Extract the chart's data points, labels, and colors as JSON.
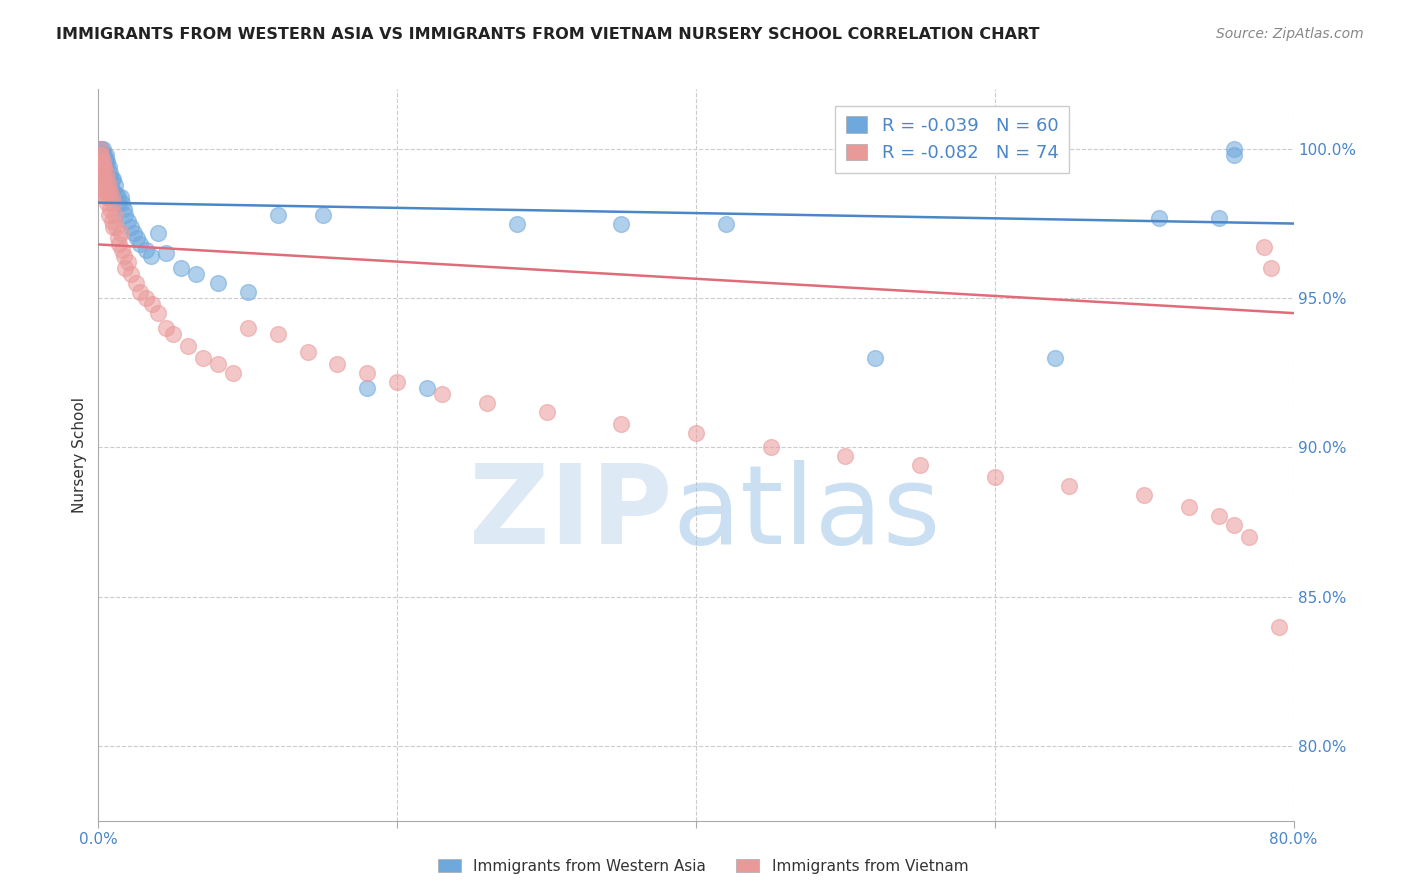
{
  "title": "IMMIGRANTS FROM WESTERN ASIA VS IMMIGRANTS FROM VIETNAM NURSERY SCHOOL CORRELATION CHART",
  "source": "Source: ZipAtlas.com",
  "ylabel": "Nursery School",
  "y_tick_labels": [
    "80.0%",
    "85.0%",
    "90.0%",
    "95.0%",
    "100.0%"
  ],
  "y_tick_values": [
    0.8,
    0.85,
    0.9,
    0.95,
    1.0
  ],
  "x_tick_labels": [
    "0.0%",
    "",
    "",
    "",
    "80.0%"
  ],
  "x_tick_values": [
    0.0,
    0.2,
    0.4,
    0.6,
    0.8
  ],
  "x_min": 0.0,
  "x_max": 0.8,
  "y_min": 0.775,
  "y_max": 1.02,
  "blue_color": "#6fa8dc",
  "pink_color": "#ea9999",
  "blue_line_color": "#4a86c8",
  "pink_line_color": "#e06c7a",
  "legend_R_blue": "R = -0.039",
  "legend_N_blue": "N = 60",
  "legend_R_pink": "R = -0.082",
  "legend_N_pink": "N = 74",
  "watermark_zip": "ZIP",
  "watermark_atlas": "atlas",
  "grid_color": "#cccccc",
  "blue_line_x0": 0.0,
  "blue_line_y0": 0.982,
  "blue_line_x1": 0.8,
  "blue_line_y1": 0.975,
  "pink_line_x0": 0.0,
  "pink_line_y0": 0.968,
  "pink_line_x1": 0.8,
  "pink_line_y1": 0.945,
  "blue_scatter_x": [
    0.001,
    0.001,
    0.002,
    0.002,
    0.002,
    0.003,
    0.003,
    0.003,
    0.003,
    0.004,
    0.004,
    0.004,
    0.005,
    0.005,
    0.005,
    0.006,
    0.006,
    0.006,
    0.007,
    0.007,
    0.008,
    0.008,
    0.009,
    0.009,
    0.01,
    0.01,
    0.011,
    0.012,
    0.013,
    0.014,
    0.015,
    0.016,
    0.017,
    0.018,
    0.02,
    0.022,
    0.024,
    0.026,
    0.028,
    0.032,
    0.035,
    0.04,
    0.045,
    0.055,
    0.065,
    0.08,
    0.1,
    0.12,
    0.15,
    0.18,
    0.22,
    0.28,
    0.35,
    0.42,
    0.52,
    0.64,
    0.71,
    0.75,
    0.76,
    0.76
  ],
  "blue_scatter_y": [
    1.0,
    0.998,
    1.0,
    0.998,
    0.996,
    1.0,
    0.998,
    0.996,
    0.994,
    0.998,
    0.996,
    0.994,
    0.998,
    0.996,
    0.992,
    0.996,
    0.994,
    0.99,
    0.994,
    0.99,
    0.992,
    0.988,
    0.99,
    0.986,
    0.99,
    0.986,
    0.988,
    0.985,
    0.984,
    0.982,
    0.984,
    0.982,
    0.98,
    0.978,
    0.976,
    0.974,
    0.972,
    0.97,
    0.968,
    0.966,
    0.964,
    0.972,
    0.965,
    0.96,
    0.958,
    0.955,
    0.952,
    0.978,
    0.978,
    0.92,
    0.92,
    0.975,
    0.975,
    0.975,
    0.93,
    0.93,
    0.977,
    0.977,
    1.0,
    0.998
  ],
  "pink_scatter_x": [
    0.001,
    0.001,
    0.001,
    0.002,
    0.002,
    0.002,
    0.002,
    0.003,
    0.003,
    0.003,
    0.003,
    0.004,
    0.004,
    0.004,
    0.005,
    0.005,
    0.005,
    0.006,
    0.006,
    0.006,
    0.007,
    0.007,
    0.007,
    0.008,
    0.008,
    0.009,
    0.009,
    0.01,
    0.01,
    0.011,
    0.012,
    0.013,
    0.014,
    0.015,
    0.016,
    0.017,
    0.018,
    0.02,
    0.022,
    0.025,
    0.028,
    0.032,
    0.036,
    0.04,
    0.045,
    0.05,
    0.06,
    0.07,
    0.08,
    0.09,
    0.1,
    0.12,
    0.14,
    0.16,
    0.18,
    0.2,
    0.23,
    0.26,
    0.3,
    0.35,
    0.4,
    0.45,
    0.5,
    0.55,
    0.6,
    0.65,
    0.7,
    0.73,
    0.75,
    0.76,
    0.77,
    0.78,
    0.785,
    0.79
  ],
  "pink_scatter_y": [
    1.0,
    0.998,
    0.996,
    0.998,
    0.996,
    0.994,
    0.99,
    0.996,
    0.994,
    0.99,
    0.986,
    0.994,
    0.99,
    0.986,
    0.992,
    0.988,
    0.984,
    0.99,
    0.986,
    0.982,
    0.988,
    0.984,
    0.978,
    0.986,
    0.98,
    0.984,
    0.976,
    0.982,
    0.974,
    0.978,
    0.974,
    0.97,
    0.968,
    0.972,
    0.966,
    0.964,
    0.96,
    0.962,
    0.958,
    0.955,
    0.952,
    0.95,
    0.948,
    0.945,
    0.94,
    0.938,
    0.934,
    0.93,
    0.928,
    0.925,
    0.94,
    0.938,
    0.932,
    0.928,
    0.925,
    0.922,
    0.918,
    0.915,
    0.912,
    0.908,
    0.905,
    0.9,
    0.897,
    0.894,
    0.89,
    0.887,
    0.884,
    0.88,
    0.877,
    0.874,
    0.87,
    0.967,
    0.96,
    0.84
  ]
}
